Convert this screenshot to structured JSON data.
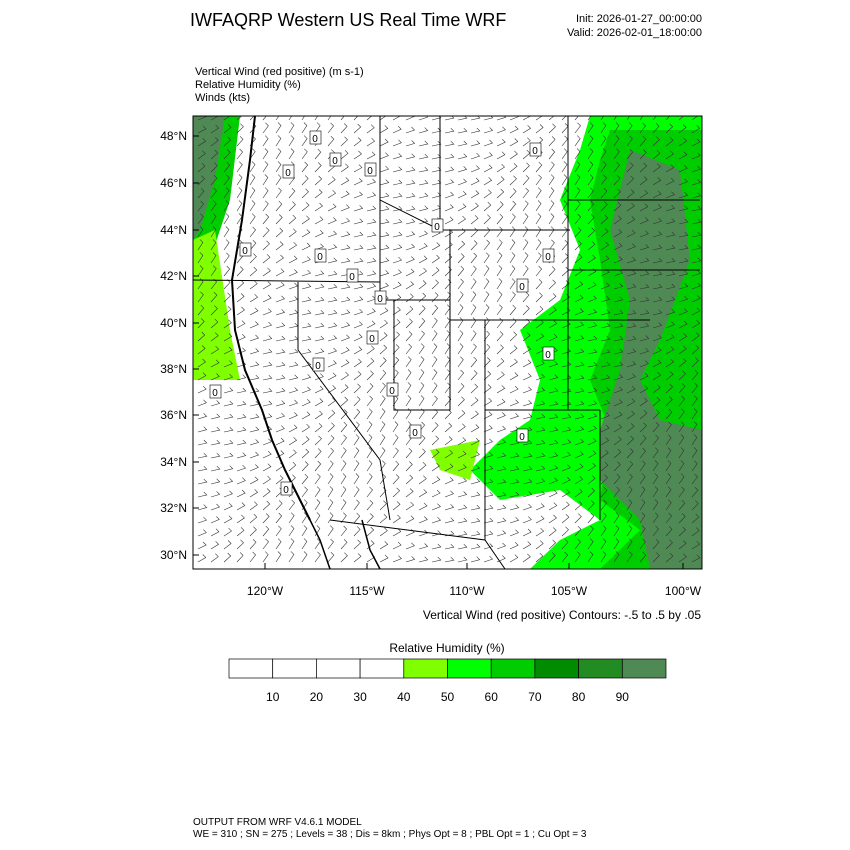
{
  "header": {
    "title": "IWFAQRP Western US Real Time WRF",
    "init": "Init: 2026-01-27_00:00:00",
    "valid": "Valid: 2026-02-01_18:00:00"
  },
  "fields": [
    "Vertical Wind (red positive)   (m s-1)",
    "Relative Humidity   (%)",
    "Winds   (kts)"
  ],
  "lat_labels": [
    "48°N",
    "46°N",
    "44°N",
    "42°N",
    "40°N",
    "38°N",
    "36°N",
    "34°N",
    "32°N",
    "30°N"
  ],
  "lon_labels": [
    "120°W",
    "115°W",
    "110°W",
    "105°W",
    "100°W"
  ],
  "contour_labels": [
    "0",
    "0",
    "0",
    "0",
    "0",
    "0",
    "0",
    "0",
    "0",
    "0",
    "0",
    "0",
    "0",
    "0",
    "0",
    "0",
    "0",
    "0",
    "0",
    "0"
  ],
  "contour_note": "Vertical Wind (red positive) Contours: -.5 to .5 by .05",
  "colorbar": {
    "title": "Relative Humidity  (%)",
    "ticks": [
      10,
      20,
      30,
      40,
      50,
      60,
      70,
      80,
      90
    ],
    "colors": [
      "#ffffff",
      "#ffffff",
      "#ffffff",
      "#ffffff",
      "#7fff00",
      "#00ff00",
      "#00cd00",
      "#008b00",
      "#228b22",
      "#4f8a55"
    ]
  },
  "footer": [
    "OUTPUT FROM WRF V4.6.1 MODEL",
    "WE = 310 ; SN = 275 ; Levels = 38 ; Dis = 8km ; Phys Opt = 8 ; PBL Opt = 1 ; Cu Opt = 3"
  ]
}
